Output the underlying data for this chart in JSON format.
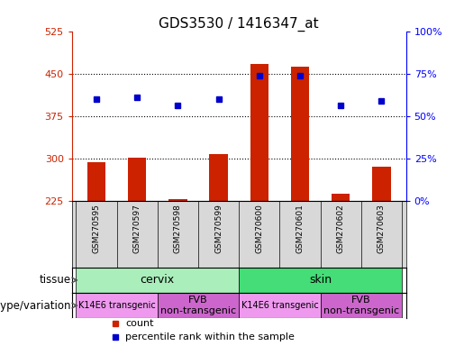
{
  "title": "GDS3530 / 1416347_at",
  "samples": [
    "GSM270595",
    "GSM270597",
    "GSM270598",
    "GSM270599",
    "GSM270600",
    "GSM270601",
    "GSM270602",
    "GSM270603"
  ],
  "counts": [
    293,
    302,
    228,
    307,
    467,
    462,
    237,
    285
  ],
  "percentiles": [
    60,
    61,
    56,
    60,
    74,
    74,
    56,
    59
  ],
  "ymin": 225,
  "ymax": 525,
  "yticks": [
    225,
    300,
    375,
    450,
    525
  ],
  "right_yticks": [
    0,
    25,
    50,
    75,
    100
  ],
  "bar_color": "#cc2200",
  "marker_color": "#0000cc",
  "tissue_row": [
    {
      "label": "cervix",
      "start": 0,
      "end": 4,
      "color": "#aaeebb"
    },
    {
      "label": "skin",
      "start": 4,
      "end": 8,
      "color": "#44dd77"
    }
  ],
  "genotype_row": [
    {
      "label": "K14E6 transgenic",
      "start": 0,
      "end": 2,
      "color": "#ee99ee",
      "fontsize": 7
    },
    {
      "label": "FVB\nnon-transgenic",
      "start": 2,
      "end": 4,
      "color": "#cc66cc",
      "fontsize": 8
    },
    {
      "label": "K14E6 transgenic",
      "start": 4,
      "end": 6,
      "color": "#ee99ee",
      "fontsize": 7
    },
    {
      "label": "FVB\nnon-transgenic",
      "start": 6,
      "end": 8,
      "color": "#cc66cc",
      "fontsize": 8
    }
  ],
  "tissue_label": "tissue",
  "genotype_label": "genotype/variation",
  "legend_count_color": "#cc2200",
  "legend_marker_color": "#0000cc",
  "legend_count_label": "count",
  "legend_marker_label": "percentile rank within the sample",
  "title_fontsize": 11,
  "tick_fontsize": 8,
  "bar_width": 0.45,
  "sample_label_fontsize": 6.5,
  "row_label_fontsize": 8.5
}
